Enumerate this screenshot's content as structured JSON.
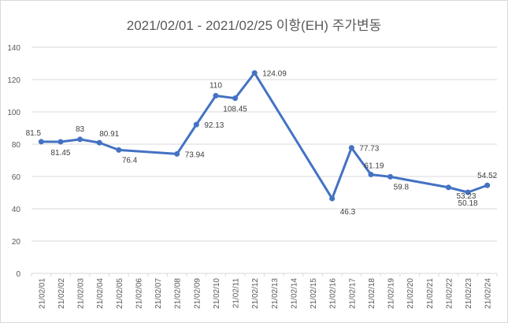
{
  "chart_data": {
    "type": "line",
    "title": "2021/02/01 - 2021/02/25 이항(EH) 주가변동",
    "xlabel": "",
    "ylabel": "",
    "ylim": [
      0,
      140
    ],
    "yticks": [
      0,
      20,
      40,
      60,
      80,
      100,
      120,
      140
    ],
    "grid": true,
    "legend": "none",
    "line_color": "#4472C4",
    "categories": [
      "21/02/01",
      "21/02/02",
      "21/02/03",
      "21/02/04",
      "21/02/05",
      "21/02/06",
      "21/02/07",
      "21/02/08",
      "21/02/09",
      "21/02/10",
      "21/02/11",
      "21/02/12",
      "21/02/13",
      "21/02/14",
      "21/02/15",
      "21/02/16",
      "21/02/17",
      "21/02/18",
      "21/02/19",
      "21/02/20",
      "21/02/21",
      "21/02/22",
      "21/02/23",
      "21/02/24"
    ],
    "points": [
      {
        "x": "21/02/01",
        "y": 81.5,
        "label": "81.5"
      },
      {
        "x": "21/02/02",
        "y": 81.45,
        "label": "81.45"
      },
      {
        "x": "21/02/03",
        "y": 83,
        "label": "83"
      },
      {
        "x": "21/02/04",
        "y": 80.91,
        "label": "80.91"
      },
      {
        "x": "21/02/05",
        "y": 76.4,
        "label": "76.4"
      },
      {
        "x": "21/02/08",
        "y": 73.94,
        "label": "73.94"
      },
      {
        "x": "21/02/09",
        "y": 92.13,
        "label": "92.13"
      },
      {
        "x": "21/02/10",
        "y": 110,
        "label": "110"
      },
      {
        "x": "21/02/11",
        "y": 108.45,
        "label": "108.45"
      },
      {
        "x": "21/02/12",
        "y": 124.09,
        "label": "124.09"
      },
      {
        "x": "21/02/16",
        "y": 46.3,
        "label": "46.3"
      },
      {
        "x": "21/02/17",
        "y": 77.73,
        "label": "77.73"
      },
      {
        "x": "21/02/18",
        "y": 61.19,
        "label": "61.19"
      },
      {
        "x": "21/02/19",
        "y": 59.8,
        "label": "59.8"
      },
      {
        "x": "21/02/22",
        "y": 53.23,
        "label": "53.23"
      },
      {
        "x": "21/02/23",
        "y": 50.18,
        "label": "50.18"
      },
      {
        "x": "21/02/24",
        "y": 54.52,
        "label": "54.52"
      }
    ]
  }
}
